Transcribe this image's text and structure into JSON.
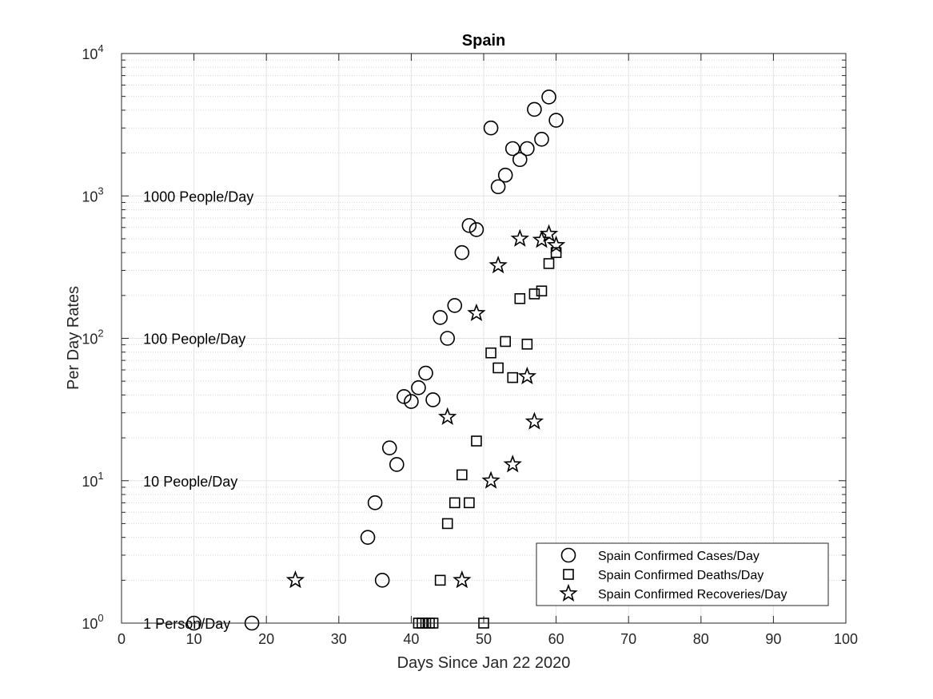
{
  "chart_data": {
    "type": "scatter",
    "title": "Spain",
    "xlabel": "Days Since Jan 22 2020",
    "ylabel": "Per Day Rates",
    "xlim": [
      0,
      100
    ],
    "ylim": [
      1,
      10000
    ],
    "yscale": "log",
    "grid": true,
    "minor_grid": true,
    "legend_position": "bottom-right",
    "x_ticks": [
      0,
      10,
      20,
      30,
      40,
      50,
      60,
      70,
      80,
      90,
      100
    ],
    "y_ticks": [
      {
        "value": 1,
        "base": "10",
        "exp": "0"
      },
      {
        "value": 10,
        "base": "10",
        "exp": "1"
      },
      {
        "value": 100,
        "base": "10",
        "exp": "2"
      },
      {
        "value": 1000,
        "base": "10",
        "exp": "3"
      },
      {
        "value": 10000,
        "base": "10",
        "exp": "4"
      }
    ],
    "annotations": [
      {
        "text": "1000 People/Day",
        "x": 3,
        "y": 1000
      },
      {
        "text": "100 People/Day",
        "x": 3,
        "y": 100
      },
      {
        "text": "10 People/Day",
        "x": 3,
        "y": 10
      },
      {
        "text": "1 Person/Day",
        "x": 3,
        "y": 1
      }
    ],
    "series": [
      {
        "name": "Spain Confirmed Cases/Day",
        "marker": "circle",
        "points": [
          [
            10,
            1
          ],
          [
            18,
            1
          ],
          [
            34,
            4
          ],
          [
            35,
            7
          ],
          [
            36,
            2
          ],
          [
            37,
            17
          ],
          [
            38,
            13
          ],
          [
            39,
            39
          ],
          [
            40,
            36
          ],
          [
            41,
            45
          ],
          [
            42,
            57
          ],
          [
            43,
            37
          ],
          [
            44,
            140
          ],
          [
            45,
            100
          ],
          [
            46,
            170
          ],
          [
            47,
            400
          ],
          [
            48,
            620
          ],
          [
            49,
            580
          ],
          [
            51,
            3000
          ],
          [
            52,
            1160
          ],
          [
            53,
            1400
          ],
          [
            54,
            2150
          ],
          [
            55,
            1800
          ],
          [
            56,
            2150
          ],
          [
            57,
            4050
          ],
          [
            58,
            2500
          ],
          [
            59,
            4950
          ],
          [
            60,
            3400
          ]
        ]
      },
      {
        "name": "Spain Confirmed Deaths/Day",
        "marker": "square",
        "points": [
          [
            41,
            1
          ],
          [
            41.5,
            1
          ],
          [
            42,
            1
          ],
          [
            42.5,
            1
          ],
          [
            43,
            1
          ],
          [
            44,
            2
          ],
          [
            45,
            5
          ],
          [
            46,
            7
          ],
          [
            47,
            11
          ],
          [
            48,
            7
          ],
          [
            49,
            19
          ],
          [
            50,
            1
          ],
          [
            51,
            79
          ],
          [
            52,
            62
          ],
          [
            53,
            95
          ],
          [
            54,
            53
          ],
          [
            55,
            190
          ],
          [
            56,
            91
          ],
          [
            57,
            205
          ],
          [
            58,
            215
          ],
          [
            59,
            335
          ],
          [
            60,
            400
          ]
        ]
      },
      {
        "name": "Spain Confirmed Recoveries/Day",
        "marker": "star",
        "points": [
          [
            24,
            2
          ],
          [
            45,
            28
          ],
          [
            47,
            2
          ],
          [
            49,
            150
          ],
          [
            51,
            10
          ],
          [
            52,
            325
          ],
          [
            54,
            13
          ],
          [
            55,
            500
          ],
          [
            56,
            54
          ],
          [
            57,
            26
          ],
          [
            58,
            490
          ],
          [
            59,
            540
          ],
          [
            60,
            450
          ]
        ]
      }
    ]
  }
}
